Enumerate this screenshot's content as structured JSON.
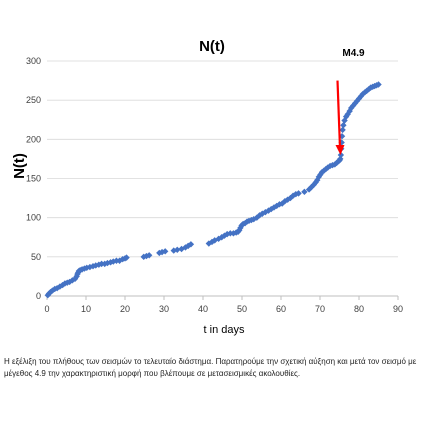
{
  "chart_data": {
    "type": "scatter",
    "title": "N(t)",
    "xlabel": "t in days",
    "ylabel": "N(t)",
    "xlim": [
      0,
      90
    ],
    "ylim": [
      0,
      300
    ],
    "xticks": [
      0,
      10,
      20,
      30,
      40,
      50,
      60,
      70,
      80,
      90
    ],
    "yticks": [
      0,
      50,
      100,
      150,
      200,
      250,
      300
    ],
    "grid": "horizontal",
    "legend": "none",
    "series": [
      {
        "color": "#4472c4",
        "marker": "diamond",
        "points": [
          [
            0.2,
            1
          ],
          [
            0.5,
            3
          ],
          [
            0.9,
            5
          ],
          [
            1.4,
            7
          ],
          [
            2,
            9
          ],
          [
            2.6,
            10
          ],
          [
            3.3,
            12
          ],
          [
            4,
            14
          ],
          [
            4.6,
            16
          ],
          [
            5.2,
            17
          ],
          [
            5.8,
            18
          ],
          [
            6.5,
            20
          ],
          [
            7.2,
            22
          ],
          [
            7.6,
            25
          ],
          [
            7.8,
            28
          ],
          [
            8,
            30
          ],
          [
            8.2,
            32
          ],
          [
            8.5,
            33
          ],
          [
            9,
            34
          ],
          [
            9.6,
            35
          ],
          [
            10.2,
            36
          ],
          [
            11,
            37
          ],
          [
            11.8,
            38
          ],
          [
            12.5,
            39
          ],
          [
            13.3,
            40
          ],
          [
            14,
            41
          ],
          [
            14.8,
            41
          ],
          [
            15.5,
            42
          ],
          [
            16.3,
            43
          ],
          [
            17,
            44
          ],
          [
            17.8,
            45
          ],
          [
            18.6,
            45
          ],
          [
            19.4,
            47
          ],
          [
            20,
            48
          ],
          [
            20.4,
            49
          ],
          [
            24.8,
            50
          ],
          [
            25.5,
            51
          ],
          [
            26.2,
            52
          ],
          [
            28.8,
            55
          ],
          [
            29.5,
            56
          ],
          [
            30.3,
            57
          ],
          [
            32.5,
            58
          ],
          [
            33.4,
            59
          ],
          [
            34.5,
            60
          ],
          [
            35.5,
            62
          ],
          [
            36.2,
            64
          ],
          [
            36.9,
            66
          ],
          [
            41.5,
            67
          ],
          [
            42.3,
            69
          ],
          [
            43,
            71
          ],
          [
            44,
            73
          ],
          [
            44.8,
            75
          ],
          [
            45.5,
            77
          ],
          [
            46.2,
            79
          ],
          [
            47,
            80
          ],
          [
            47.8,
            80
          ],
          [
            48.5,
            81
          ],
          [
            49,
            82
          ],
          [
            49.3,
            84
          ],
          [
            49.6,
            87
          ],
          [
            49.9,
            90
          ],
          [
            50.3,
            92
          ],
          [
            50.8,
            93
          ],
          [
            51.3,
            95
          ],
          [
            51.8,
            96
          ],
          [
            52.4,
            97
          ],
          [
            53,
            98
          ],
          [
            53.8,
            100
          ],
          [
            54.5,
            103
          ],
          [
            55.2,
            105
          ],
          [
            56,
            107
          ],
          [
            56.8,
            109
          ],
          [
            57.5,
            111
          ],
          [
            58.2,
            113
          ],
          [
            58.9,
            115
          ],
          [
            59.6,
            117
          ],
          [
            60.3,
            118
          ],
          [
            61,
            121
          ],
          [
            61.7,
            123
          ],
          [
            62.4,
            125
          ],
          [
            63.1,
            128
          ],
          [
            63.8,
            130
          ],
          [
            64.5,
            131
          ],
          [
            66,
            133
          ],
          [
            67.2,
            136
          ],
          [
            67.8,
            139
          ],
          [
            68.4,
            142
          ],
          [
            68.9,
            145
          ],
          [
            69.3,
            148
          ],
          [
            69.7,
            152
          ],
          [
            70.1,
            155
          ],
          [
            70.5,
            158
          ],
          [
            71,
            160
          ],
          [
            71.5,
            162
          ],
          [
            72,
            164
          ],
          [
            72.6,
            166
          ],
          [
            73.2,
            167
          ],
          [
            73.8,
            168
          ],
          [
            74.3,
            170
          ],
          [
            74.7,
            172
          ],
          [
            75,
            173
          ],
          [
            75.2,
            175
          ],
          [
            75.35,
            180
          ],
          [
            75.45,
            188
          ],
          [
            75.55,
            196
          ],
          [
            75.65,
            204
          ],
          [
            75.8,
            212
          ],
          [
            76,
            218
          ],
          [
            76.3,
            224
          ],
          [
            76.7,
            229
          ],
          [
            77.1,
            232
          ],
          [
            77.6,
            236
          ],
          [
            78,
            240
          ],
          [
            78.5,
            243
          ],
          [
            79,
            246
          ],
          [
            79.5,
            249
          ],
          [
            80,
            252
          ],
          [
            80.5,
            255
          ],
          [
            81,
            258
          ],
          [
            81.5,
            260
          ],
          [
            82,
            262
          ],
          [
            82.5,
            264
          ],
          [
            83,
            266
          ],
          [
            83.5,
            267
          ],
          [
            84,
            268
          ],
          [
            84.5,
            269
          ],
          [
            85,
            270
          ]
        ]
      }
    ],
    "annotations": [
      {
        "text": "M4.9",
        "arrow_color": "#ff0000",
        "x": 75,
        "y_from": 275,
        "y_to": 180
      }
    ]
  },
  "caption": "Η εξέλιξη του πλήθους των σεισμών  το τελευταίο διάστημα. Παρατηρούμε την σχετική αύξηση και μετά τον σεισμό με μέγεθος 4.9 την χαρακτηριστική μορφή που βλέπουμε σε μετασεισμικές ακολουθίες."
}
